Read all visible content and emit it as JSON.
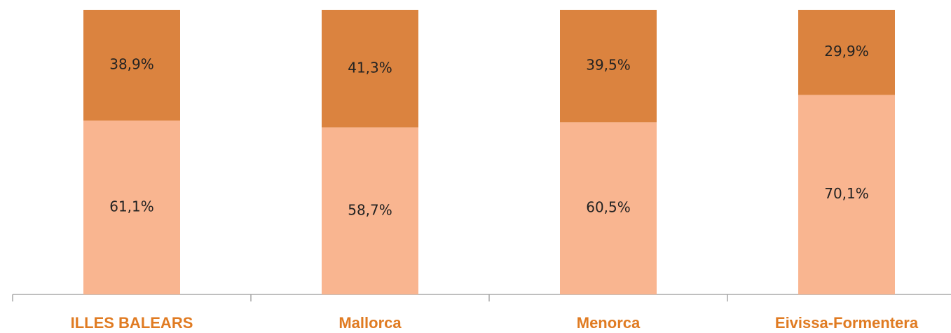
{
  "chart_data": {
    "type": "stacked_bar",
    "categories": [
      "ILLES BALEARS",
      "Mallorca",
      "Menorca",
      "Eivissa-Formentera"
    ],
    "series": [
      {
        "color": "#f9b590",
        "values": [
          61.1,
          58.7,
          60.5,
          70.1
        ],
        "value_labels": [
          "61,1%",
          "58,7%",
          "60,5%",
          "70,1%"
        ]
      },
      {
        "color": "#db833f",
        "values": [
          38.9,
          41.3,
          39.5,
          29.9
        ],
        "value_labels": [
          "38,9%",
          "41,3%",
          "39,5%",
          "29,9%"
        ]
      }
    ],
    "ylim": [
      0,
      100
    ],
    "category_color": "#e07b22"
  }
}
